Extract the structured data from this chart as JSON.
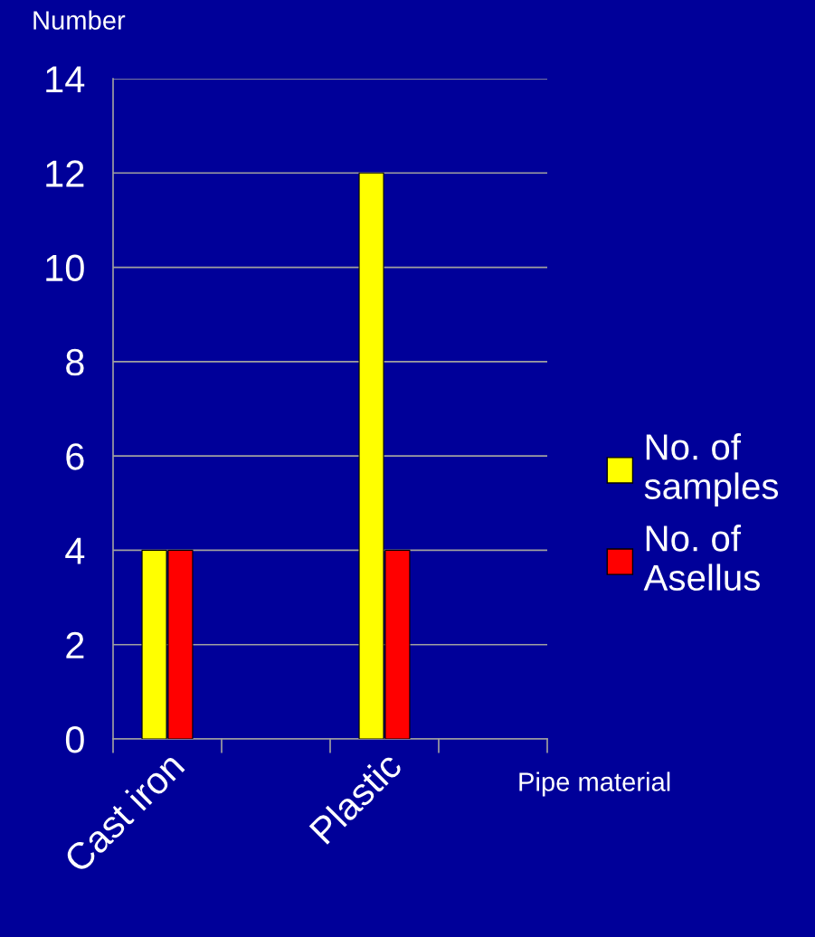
{
  "chart_data": {
    "type": "bar",
    "ylabel": "Number",
    "xlabel": "Pipe material",
    "categories": [
      "Cast iron",
      null,
      "Plastic",
      null
    ],
    "series": [
      {
        "name": "No. of samples",
        "color": "#ffff00",
        "values": [
          4,
          null,
          12,
          null
        ]
      },
      {
        "name": "No. of Asellus",
        "color": "#ff0000",
        "values": [
          4,
          null,
          4,
          null
        ]
      }
    ],
    "ylim": [
      0,
      14
    ],
    "yticks": [
      0,
      2,
      4,
      6,
      8,
      10,
      12,
      14
    ],
    "grid": "y",
    "legend": "right"
  }
}
